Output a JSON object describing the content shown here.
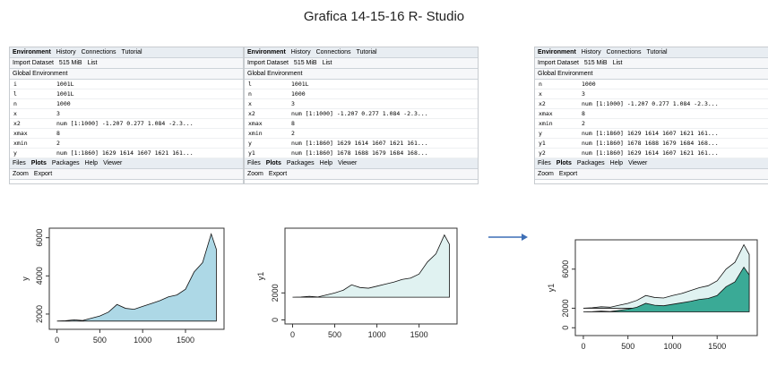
{
  "title": "Grafica 14-15-16 R- Studio",
  "ui": {
    "env_tabs": [
      "Environment",
      "History",
      "Connections",
      "Tutorial"
    ],
    "import": "Import Dataset",
    "memory": "515 MiB",
    "list": "List",
    "scope": "Global Environment",
    "files_tabs": [
      "Files",
      "Plots",
      "Packages",
      "Help",
      "Viewer"
    ],
    "zoom": "Zoom",
    "export": "Export"
  },
  "panels": [
    {
      "rows": [
        [
          "i",
          "1001L"
        ],
        [
          "l",
          "1001L"
        ],
        [
          "n",
          "1000"
        ],
        [
          "x",
          "3"
        ],
        [
          "x2",
          "num [1:1000] -1.207 0.277 1.084 -2.3..."
        ],
        [
          "xmax",
          "8"
        ],
        [
          "xmin",
          "2"
        ],
        [
          "y",
          "num [1:1860] 1629 1614 1607 1621 161..."
        ]
      ]
    },
    {
      "rows": [
        [
          "l",
          "1001L"
        ],
        [
          "n",
          "1000"
        ],
        [
          "x",
          "3"
        ],
        [
          "x2",
          "num [1:1000] -1.207 0.277 1.084 -2.3..."
        ],
        [
          "xmax",
          "8"
        ],
        [
          "xmin",
          "2"
        ],
        [
          "y",
          "num [1:1860] 1629 1614 1607 1621 161..."
        ],
        [
          "y1",
          "num [1:1860] 1678 1688 1679 1684 168..."
        ]
      ]
    },
    {
      "rows": [
        [
          "n",
          "1000"
        ],
        [
          "x",
          "3"
        ],
        [
          "x2",
          "num [1:1000] -1.207 0.277 1.084 -2.3..."
        ],
        [
          "xmax",
          "8"
        ],
        [
          "xmin",
          "2"
        ],
        [
          "y",
          "num [1:1860] 1629 1614 1607 1621 161..."
        ],
        [
          "y1",
          "num [1:1860] 1678 1688 1679 1684 168..."
        ],
        [
          "y2",
          "num [1:1860] 1629 1614 1607 1621 161..."
        ]
      ]
    }
  ],
  "plots": [
    {
      "type": "area",
      "ylabel": "y",
      "xlim": [
        -90,
        1950
      ],
      "ylim": [
        1200,
        6500
      ],
      "xticks": [
        0,
        500,
        1000,
        1500
      ],
      "yticks": [
        2000,
        4000,
        6000
      ],
      "x": [
        0,
        100,
        200,
        300,
        400,
        500,
        600,
        700,
        800,
        900,
        1000,
        1100,
        1200,
        1300,
        1400,
        1500,
        1600,
        1700,
        1800,
        1860
      ],
      "series": [
        {
          "color": "#add8e6",
          "values": [
            1630,
            1650,
            1700,
            1660,
            1780,
            1900,
            2100,
            2500,
            2300,
            2250,
            2400,
            2550,
            2700,
            2900,
            3000,
            3300,
            4200,
            4700,
            6200,
            5400
          ]
        }
      ]
    },
    {
      "type": "area",
      "ylabel": "y1",
      "xlim": [
        -90,
        1950
      ],
      "ylim": [
        -300,
        6800
      ],
      "xticks": [
        0,
        500,
        1000,
        1500
      ],
      "yticks": [
        0,
        2000
      ],
      "x": [
        0,
        100,
        200,
        300,
        400,
        500,
        600,
        700,
        800,
        900,
        1000,
        1100,
        1200,
        1300,
        1400,
        1500,
        1600,
        1700,
        1800,
        1860
      ],
      "series": [
        {
          "color": "#e0f2f1",
          "values": [
            1680,
            1700,
            1750,
            1700,
            1850,
            2000,
            2200,
            2600,
            2400,
            2350,
            2500,
            2650,
            2800,
            3000,
            3100,
            3400,
            4300,
            4900,
            6300,
            5600
          ]
        }
      ]
    },
    {
      "type": "area",
      "ylabel": "y1",
      "xlim": [
        -90,
        1950
      ],
      "ylim": [
        -800,
        9000
      ],
      "xticks": [
        0,
        500,
        1000,
        1500
      ],
      "yticks": [
        0,
        2000,
        6000
      ],
      "x": [
        0,
        100,
        200,
        300,
        400,
        500,
        600,
        700,
        800,
        900,
        1000,
        1100,
        1200,
        1300,
        1400,
        1500,
        1600,
        1700,
        1800,
        1860
      ],
      "series": [
        {
          "color": "#e0f2f1",
          "values": [
            2000,
            2050,
            2150,
            2100,
            2300,
            2500,
            2800,
            3300,
            3100,
            3050,
            3300,
            3500,
            3800,
            4100,
            4300,
            4800,
            6000,
            6700,
            8500,
            7500
          ]
        },
        {
          "color": "#3aaa96",
          "values": [
            1630,
            1650,
            1700,
            1660,
            1780,
            1900,
            2100,
            2500,
            2300,
            2250,
            2400,
            2550,
            2700,
            2900,
            3000,
            3300,
            4200,
            4700,
            6200,
            5400
          ]
        }
      ]
    }
  ]
}
